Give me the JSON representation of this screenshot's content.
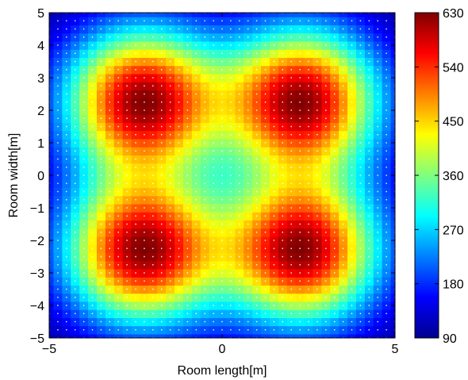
{
  "chart_data": {
    "type": "heatmap",
    "title": "",
    "xlabel": "Room length[m]",
    "ylabel": "Room width[m]",
    "xlim": [
      -5,
      5
    ],
    "ylim": [
      -5,
      5
    ],
    "xticks": [
      "−5",
      "0",
      "5"
    ],
    "yticks": [
      "5",
      "4",
      "3",
      "2",
      "1",
      "0",
      "−1",
      "−2",
      "−3",
      "−4",
      "−5"
    ],
    "colorbar": {
      "min": 90,
      "max": 630,
      "ticks": [
        "630",
        "540",
        "450",
        "360",
        "270",
        "180",
        "90"
      ],
      "colormap": "jet"
    },
    "grid": false,
    "peaks": [
      {
        "x": -2.3,
        "y": 2.3,
        "value": 630
      },
      {
        "x": 2.3,
        "y": 2.3,
        "value": 630
      },
      {
        "x": -2.3,
        "y": -2.3,
        "value": 630
      },
      {
        "x": 2.3,
        "y": -2.3,
        "value": 630
      }
    ],
    "center_value": 380,
    "corner_value": 90,
    "marker_color": "#ffffff"
  }
}
